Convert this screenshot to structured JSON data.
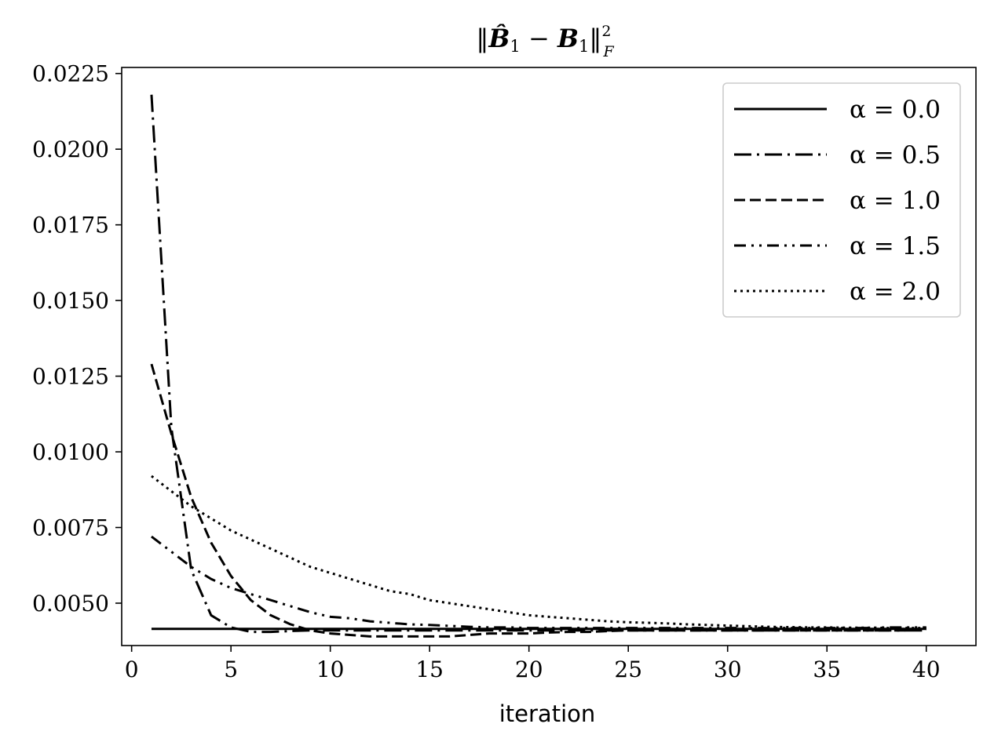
{
  "chart_data": {
    "type": "line",
    "title": "‖B̂₁ − B₁‖²_F",
    "title_parts": {
      "norm_open": "‖",
      "b_hat": "B̂",
      "sub1": "1",
      "minus": " − ",
      "b": "B",
      "sub2": "1",
      "norm_close": "‖",
      "sup": "2",
      "sub_f": "F"
    },
    "xlabel": "iteration",
    "ylabel": "",
    "xlim": [
      -0.5,
      42.5
    ],
    "ylim": [
      0.0036,
      0.0227
    ],
    "x_ticks": [
      0,
      5,
      10,
      15,
      20,
      25,
      30,
      35,
      40
    ],
    "x_tick_labels": [
      "0",
      "5",
      "10",
      "15",
      "20",
      "25",
      "30",
      "35",
      "40"
    ],
    "y_ticks": [
      0.005,
      0.0075,
      0.01,
      0.0125,
      0.015,
      0.0175,
      0.02,
      0.0225
    ],
    "y_tick_labels": [
      "0.0050",
      "0.0075",
      "0.0100",
      "0.0125",
      "0.0150",
      "0.0175",
      "0.0200",
      "0.0225"
    ],
    "grid": false,
    "legend_position": "top-right",
    "line_color": "#000000",
    "x": [
      1,
      2,
      3,
      4,
      5,
      6,
      7,
      8,
      9,
      10,
      11,
      12,
      13,
      14,
      15,
      16,
      17,
      18,
      19,
      20,
      21,
      22,
      23,
      24,
      25,
      26,
      27,
      28,
      29,
      30,
      31,
      32,
      33,
      34,
      35,
      36,
      37,
      38,
      39,
      40
    ],
    "series": [
      {
        "name": "α = 0.0",
        "dash": "solid",
        "values": [
          0.00415,
          0.00415,
          0.00415,
          0.00415,
          0.00415,
          0.00415,
          0.00415,
          0.00415,
          0.00415,
          0.00415,
          0.00415,
          0.00415,
          0.00415,
          0.00415,
          0.00415,
          0.00415,
          0.00415,
          0.00415,
          0.00415,
          0.00415,
          0.00415,
          0.00415,
          0.00415,
          0.00415,
          0.00415,
          0.00415,
          0.00415,
          0.00415,
          0.00415,
          0.00415,
          0.00415,
          0.00415,
          0.00415,
          0.00415,
          0.00415,
          0.00415,
          0.00415,
          0.00415,
          0.00415,
          0.00415
        ]
      },
      {
        "name": "α = 0.5",
        "dash": "dashdot",
        "values": [
          0.0218,
          0.0108,
          0.0061,
          0.0046,
          0.0042,
          0.00405,
          0.00405,
          0.00408,
          0.0041,
          0.0041,
          0.0041,
          0.0041,
          0.0041,
          0.0041,
          0.0041,
          0.0041,
          0.0041,
          0.0041,
          0.0041,
          0.0041,
          0.0041,
          0.0041,
          0.0041,
          0.0041,
          0.0041,
          0.0041,
          0.0041,
          0.0041,
          0.0041,
          0.0041,
          0.0041,
          0.0041,
          0.0041,
          0.0041,
          0.0041,
          0.0041,
          0.0041,
          0.0041,
          0.0041,
          0.0041
        ]
      },
      {
        "name": "α = 1.0",
        "dash": "dashed",
        "values": [
          0.0129,
          0.0106,
          0.0085,
          0.007,
          0.0059,
          0.0051,
          0.0046,
          0.0043,
          0.0041,
          0.004,
          0.00395,
          0.0039,
          0.0039,
          0.0039,
          0.0039,
          0.0039,
          0.00395,
          0.004,
          0.004,
          0.004,
          0.00403,
          0.00405,
          0.00405,
          0.00408,
          0.0041,
          0.0041,
          0.0041,
          0.0041,
          0.0041,
          0.0041,
          0.0041,
          0.0041,
          0.0041,
          0.0041,
          0.0041,
          0.0041,
          0.0041,
          0.0041,
          0.0041,
          0.00415
        ]
      },
      {
        "name": "α = 1.5",
        "dash": "dashdotdot",
        "values": [
          0.0072,
          0.0067,
          0.0062,
          0.0058,
          0.0055,
          0.0053,
          0.0051,
          0.0049,
          0.0047,
          0.00455,
          0.0045,
          0.0044,
          0.00435,
          0.0043,
          0.00428,
          0.00425,
          0.00422,
          0.0042,
          0.0042,
          0.00418,
          0.00418,
          0.00418,
          0.00418,
          0.00418,
          0.00418,
          0.00418,
          0.00418,
          0.00418,
          0.00418,
          0.00418,
          0.00418,
          0.00418,
          0.00418,
          0.00418,
          0.00418,
          0.00418,
          0.00418,
          0.0042,
          0.0042,
          0.0042
        ]
      },
      {
        "name": "α = 2.0",
        "dash": "dotted",
        "values": [
          0.0092,
          0.0087,
          0.0082,
          0.0078,
          0.0074,
          0.0071,
          0.0068,
          0.0065,
          0.0062,
          0.006,
          0.0058,
          0.0056,
          0.0054,
          0.0053,
          0.0051,
          0.005,
          0.0049,
          0.0048,
          0.0047,
          0.0046,
          0.00455,
          0.0045,
          0.00445,
          0.0044,
          0.00437,
          0.00435,
          0.00433,
          0.0043,
          0.00428,
          0.00426,
          0.00424,
          0.00422,
          0.00421,
          0.0042,
          0.0042,
          0.00419,
          0.00419,
          0.00418,
          0.00418,
          0.00418
        ]
      }
    ]
  }
}
